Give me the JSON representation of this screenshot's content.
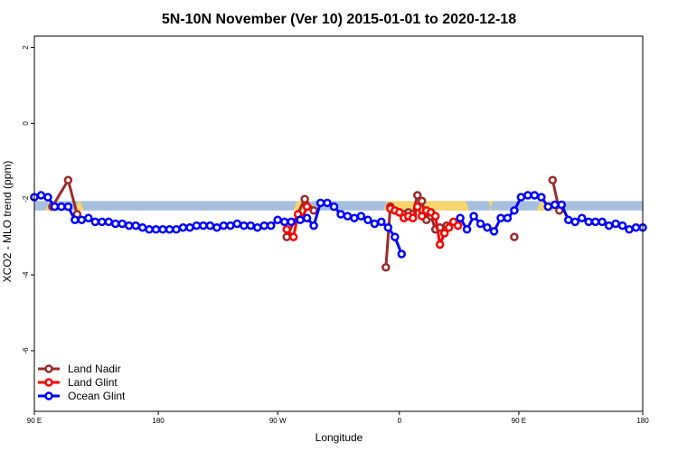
{
  "chart_data": {
    "type": "line",
    "title": "5N-10N November (Ver 10)   2015-01-01 to 2020-12-18",
    "xlabel": "Longitude",
    "ylabel": "XCO2 - MLO trend (ppm)",
    "xlim": [
      -90,
      180
    ],
    "ylim": [
      -7.6,
      2.3
    ],
    "x_ticks": [
      {
        "value": -90,
        "label": "90 E"
      },
      {
        "value": -35,
        "label": "180"
      },
      {
        "value": 18,
        "label": "90 W"
      },
      {
        "value": 72,
        "label": "0"
      },
      {
        "value": 125,
        "label": "90 E"
      },
      {
        "value": 180,
        "label": "180"
      }
    ],
    "y_ticks": [
      {
        "value": 2,
        "label": "2"
      },
      {
        "value": 0,
        "label": "0"
      },
      {
        "value": -2,
        "label": "-2"
      },
      {
        "value": -4,
        "label": "-4"
      },
      {
        "value": -6,
        "label": "-6"
      }
    ],
    "grid": false,
    "legend_position": "bottom-left",
    "band": {
      "y_top": -2.05,
      "y_bottom": -2.3,
      "color": "#a7bfdf"
    },
    "land_segments": [
      [
        -85,
        -82
      ],
      [
        -72,
        -68
      ],
      [
        25,
        30
      ],
      [
        65,
        103
      ],
      [
        112,
        113
      ],
      [
        133,
        142
      ]
    ],
    "land_color": "#f7d56e",
    "series": [
      {
        "name": "Land Nadir",
        "color": "#9b2a2a",
        "x": [
          -82,
          -75,
          -71,
          22,
          30,
          34,
          66,
          68,
          70,
          72,
          74,
          76,
          78,
          80,
          82,
          84,
          86,
          88,
          90,
          93,
          123,
          140,
          143
        ],
        "y": [
          -2.2,
          -1.5,
          -2.4,
          -3.0,
          -2.0,
          -2.3,
          -3.8,
          -2.2,
          -2.3,
          -2.35,
          -2.4,
          -2.35,
          -2.4,
          -1.9,
          -2.05,
          -2.55,
          -2.45,
          -2.8,
          -2.75,
          -2.7,
          -3.0,
          -1.5,
          -2.3
        ]
      },
      {
        "name": "Land Glint",
        "color": "#ff0000",
        "x": [
          22,
          25,
          27,
          29,
          31,
          68,
          70,
          72,
          74,
          76,
          78,
          80,
          82,
          84,
          86,
          88,
          90,
          92,
          94,
          96,
          98
        ],
        "y": [
          -2.8,
          -3.0,
          -2.4,
          -2.5,
          -2.2,
          -2.25,
          -2.3,
          -2.35,
          -2.5,
          -2.45,
          -2.5,
          -2.2,
          -2.45,
          -2.3,
          -2.35,
          -2.45,
          -3.2,
          -2.9,
          -2.75,
          -2.6,
          -2.7
        ]
      },
      {
        "name": "Ocean Glint",
        "color": "#0000ff",
        "x": [
          -90,
          -87,
          -84,
          -81,
          -78,
          -75,
          -72,
          -69,
          -66,
          -63,
          -60,
          -57,
          -54,
          -51,
          -48,
          -45,
          -42,
          -39,
          -36,
          -33,
          -30,
          -27,
          -24,
          -21,
          -18,
          -15,
          -12,
          -9,
          -6,
          -3,
          0,
          3,
          6,
          9,
          12,
          15,
          18,
          21,
          24,
          28,
          31,
          34,
          37,
          40,
          43,
          46,
          49,
          52,
          55,
          58,
          61,
          64,
          67,
          70,
          73,
          99,
          102,
          105,
          108,
          111,
          114,
          117,
          120,
          123,
          126,
          129,
          132,
          135,
          138,
          141,
          144,
          147,
          150,
          153,
          156,
          159,
          162,
          165,
          168,
          171,
          174,
          177,
          180
        ],
        "y": [
          -1.95,
          -1.9,
          -1.95,
          -2.2,
          -2.2,
          -2.2,
          -2.55,
          -2.55,
          -2.5,
          -2.6,
          -2.6,
          -2.6,
          -2.65,
          -2.65,
          -2.7,
          -2.7,
          -2.75,
          -2.8,
          -2.8,
          -2.8,
          -2.8,
          -2.8,
          -2.75,
          -2.75,
          -2.7,
          -2.7,
          -2.7,
          -2.75,
          -2.7,
          -2.7,
          -2.65,
          -2.7,
          -2.7,
          -2.75,
          -2.7,
          -2.7,
          -2.55,
          -2.6,
          -2.6,
          -2.55,
          -2.5,
          -2.7,
          -2.1,
          -2.1,
          -2.2,
          -2.4,
          -2.45,
          -2.5,
          -2.45,
          -2.55,
          -2.65,
          -2.6,
          -2.75,
          -3.0,
          -3.45,
          -2.5,
          -2.8,
          -2.45,
          -2.65,
          -2.75,
          -2.85,
          -2.5,
          -2.5,
          -2.3,
          -1.95,
          -1.9,
          -1.9,
          -1.95,
          -2.2,
          -2.15,
          -2.15,
          -2.55,
          -2.6,
          -2.5,
          -2.6,
          -2.6,
          -2.6,
          -2.7,
          -2.65,
          -2.7,
          -2.8,
          -2.75,
          -2.75
        ]
      }
    ]
  }
}
